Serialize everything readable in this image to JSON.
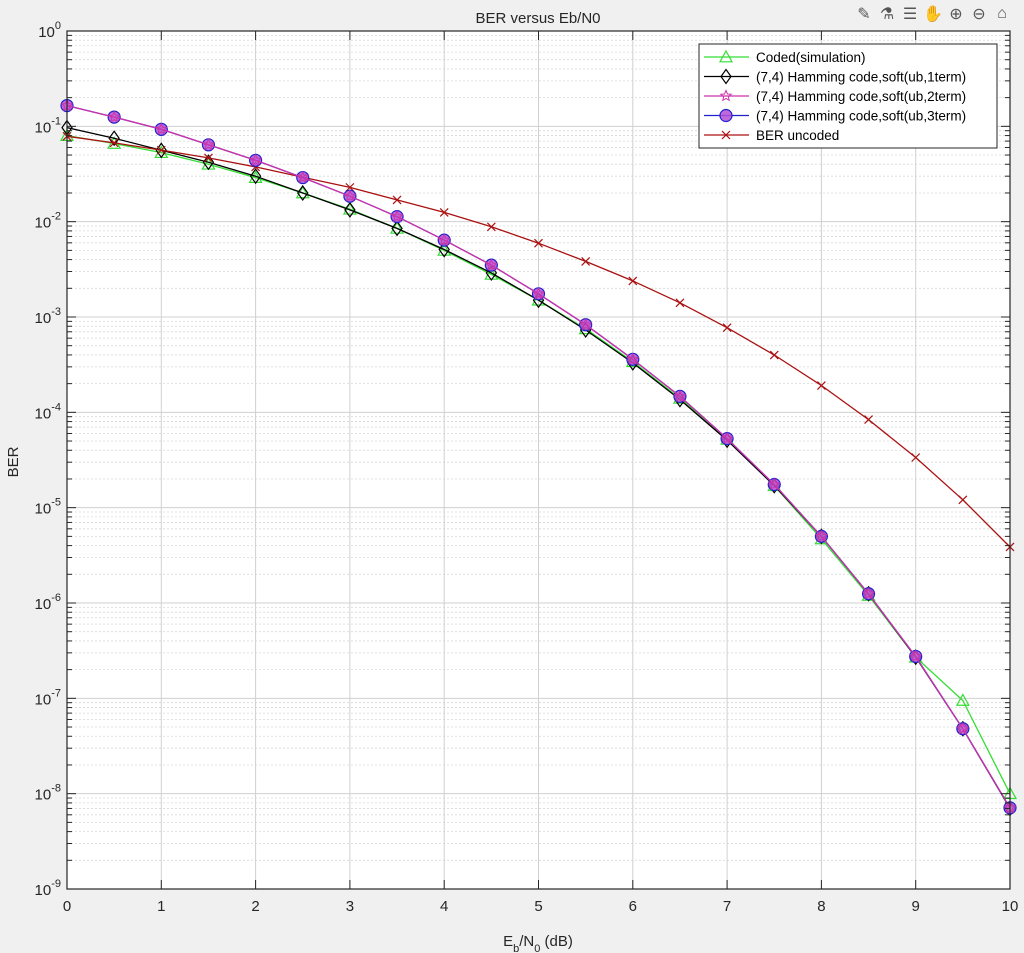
{
  "toolbar": {
    "icons": [
      "edit-pen-icon",
      "brush-icon",
      "data-tips-icon",
      "pan-hand-icon",
      "zoom-in-icon",
      "zoom-out-icon",
      "home-icon"
    ]
  },
  "chart_data": {
    "type": "line",
    "title": "BER versus Eb/N0",
    "xlabel": "Eb/N0 (dB)",
    "ylabel": "BER",
    "xlim": [
      0,
      10
    ],
    "ylim": [
      1e-09,
      1
    ],
    "yscale": "log",
    "grid": true,
    "minor_grid": true,
    "legend_position": "northeast",
    "x_ticks": [
      0,
      1,
      2,
      3,
      4,
      5,
      6,
      7,
      8,
      9,
      10
    ],
    "y_ticks": [
      0,
      -1,
      -2,
      -3,
      -4,
      -5,
      -6,
      -7,
      -8,
      -9
    ],
    "x": [
      0,
      0.5,
      1,
      1.5,
      2,
      2.5,
      3,
      3.5,
      4,
      4.5,
      5,
      5.5,
      6,
      6.5,
      7,
      7.5,
      8,
      8.5,
      9,
      9.5,
      10
    ],
    "series": [
      {
        "name": "Coded(simulation)",
        "color": "#33dd33",
        "marker": "triangle",
        "values": [
          0.08,
          0.066,
          0.053,
          0.04,
          0.029,
          0.02,
          0.0135,
          0.0085,
          0.005,
          0.0028,
          0.0015,
          0.00075,
          0.00034,
          0.00014,
          5.2e-05,
          1.7e-05,
          4.7e-06,
          1.2e-06,
          2.7e-07,
          9.5e-08,
          1e-08
        ]
      },
      {
        "name": "(7,4) Hamming code,soft(ub,1term)",
        "color": "#000000",
        "marker": "diamond",
        "values": [
          0.097,
          0.075,
          0.056,
          0.042,
          0.03,
          0.02,
          0.0133,
          0.0085,
          0.0051,
          0.0029,
          0.0015,
          0.00073,
          0.00033,
          0.000136,
          5.1e-05,
          1.7e-05,
          5e-06,
          1.25e-06,
          2.7e-07,
          4.8e-08,
          7e-09
        ]
      },
      {
        "name": "(7,4) Hamming code,soft(ub,2term)",
        "color": "#cc33aa",
        "marker": "star",
        "values": [
          0.165,
          0.125,
          0.093,
          0.064,
          0.044,
          0.029,
          0.0185,
          0.0113,
          0.0064,
          0.0035,
          0.00175,
          0.00083,
          0.00036,
          0.000147,
          5.3e-05,
          1.75e-05,
          5e-06,
          1.25e-06,
          2.75e-07,
          4.8e-08,
          7.1e-09
        ]
      },
      {
        "name": "(7,4) Hamming code,soft(ub,3term)",
        "color": "#2222cc",
        "marker": "circle",
        "values": [
          0.165,
          0.125,
          0.093,
          0.064,
          0.044,
          0.029,
          0.0185,
          0.0113,
          0.0064,
          0.0035,
          0.00175,
          0.00083,
          0.00036,
          0.000147,
          5.3e-05,
          1.75e-05,
          5e-06,
          1.25e-06,
          2.75e-07,
          4.8e-08,
          7.1e-09
        ]
      },
      {
        "name": "BER uncoded",
        "color": "#aa1111",
        "marker": "x",
        "values": [
          0.0786,
          0.0671,
          0.0563,
          0.0466,
          0.0375,
          0.0292,
          0.0229,
          0.0169,
          0.0125,
          0.00884,
          0.00595,
          0.00383,
          0.00239,
          0.00141,
          0.000773,
          0.000399,
          0.000191,
          8.4e-05,
          3.36e-05,
          1.21e-05,
          3.87e-06
        ]
      }
    ]
  }
}
